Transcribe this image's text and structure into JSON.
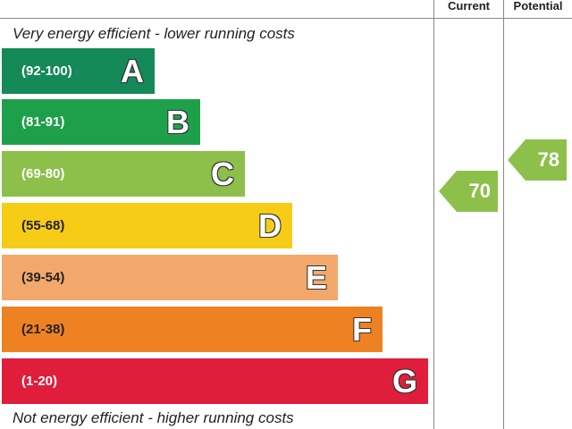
{
  "header": {
    "current_label": "Current",
    "potential_label": "Potential"
  },
  "captions": {
    "top": "Very energy efficient - lower running costs",
    "bottom": "Not energy efficient - higher running costs"
  },
  "chart_data": {
    "type": "bar",
    "bands": [
      {
        "letter": "A",
        "range": "(92-100)",
        "color": "#138a57"
      },
      {
        "letter": "B",
        "range": "(81-91)",
        "color": "#1ea04b"
      },
      {
        "letter": "C",
        "range": "(69-80)",
        "color": "#8cc04b"
      },
      {
        "letter": "D",
        "range": "(55-68)",
        "color": "#f6cc17"
      },
      {
        "letter": "E",
        "range": "(39-54)",
        "color": "#f2a86b"
      },
      {
        "letter": "F",
        "range": "(21-38)",
        "color": "#ee8223"
      },
      {
        "letter": "G",
        "range": "(1-20)",
        "color": "#e01e3b"
      }
    ],
    "current": {
      "value": "70",
      "band": "C",
      "color": "#8cc04b"
    },
    "potential": {
      "value": "78",
      "band": "C",
      "color": "#8cc04b"
    }
  }
}
